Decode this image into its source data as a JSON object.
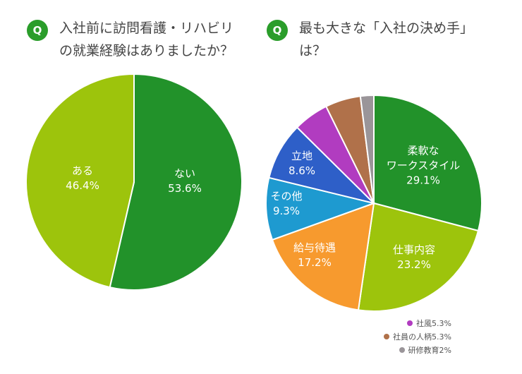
{
  "chart_data": [
    {
      "type": "pie",
      "title": "入社前に訪問看護・リハビリ\nの就業経験はありましたか？",
      "q_label": "Q",
      "slices": [
        {
          "name": "ない",
          "value": 53.6,
          "color": "#22922a"
        },
        {
          "name": "ある",
          "value": 46.4,
          "color": "#9dc40c"
        }
      ]
    },
    {
      "type": "pie",
      "title": "最も大きな「入社の決め手」\nは？",
      "q_label": "Q",
      "slices": [
        {
          "name": "柔軟な\nワークスタイル",
          "value": 29.1,
          "color": "#22922a"
        },
        {
          "name": "仕事内容",
          "value": 23.2,
          "color": "#9dc40c"
        },
        {
          "name": "給与待遇",
          "value": 17.2,
          "color": "#f79a2e"
        },
        {
          "name": "その他",
          "value": 9.3,
          "color": "#1e9ad0"
        },
        {
          "name": "立地",
          "value": 8.6,
          "color": "#2e5fc8"
        },
        {
          "name": "社風",
          "value": 5.3,
          "color": "#b13cc0"
        },
        {
          "name": "社員の人柄",
          "value": 5.3,
          "color": "#b0714a"
        },
        {
          "name": "研修教育",
          "value": 2,
          "color": "#9a9599"
        }
      ]
    }
  ],
  "labels": {
    "left": [
      "ない\n53.6%",
      "ある\n46.4%"
    ],
    "right": [
      "柔軟な\nワークスタイル\n29.1%",
      "仕事内容\n23.2%",
      "給与待遇\n17.2%",
      "その他\n9.3%",
      "立地\n8.6%"
    ],
    "legend": [
      "社風5.3%",
      "社員の人柄5.3%",
      "研修教育2%"
    ]
  }
}
